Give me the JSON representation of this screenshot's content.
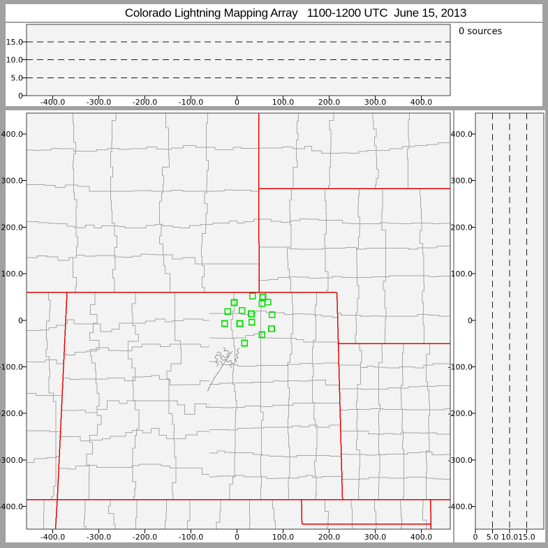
{
  "title": "Colorado Lightning Mapping Array   1100-1200 UTC  June 15, 2013",
  "sources_panel": {
    "label": "0 sources"
  },
  "colors": {
    "frame_bg": "#a1a1a1",
    "panel_bg": "#ffffff",
    "plot_bg": "#f3f3f3",
    "plot_border": "#3c3c3c",
    "axis": "#000000",
    "dashed_grid": "#1a1a1a",
    "county_line": "#a6a6a6",
    "urban_line": "#909090",
    "state_line": "#e80000",
    "station": "#00e100",
    "text": "#000000"
  },
  "chart_data": [
    {
      "id": "altitude-vs-eastwest",
      "type": "scatter",
      "title": "",
      "xlabel": "",
      "ylabel": "",
      "xlim": [
        -457,
        463
      ],
      "ylim": [
        0,
        20
      ],
      "x_ticks": [
        -400,
        -300,
        -200,
        -100,
        0,
        100,
        200,
        300,
        400
      ],
      "x_tick_labels": [
        "-400.0",
        "-300.0",
        "-200.0",
        "-100.0",
        "0",
        "100.0",
        "200.0",
        "300.0",
        "400.0"
      ],
      "y_ticks": [
        0,
        5,
        10,
        15
      ],
      "y_tick_labels": [
        "0",
        "5.0",
        "10.0",
        "15.0"
      ],
      "dashed_gridlines_y": [
        5,
        10,
        15
      ],
      "points": []
    },
    {
      "id": "map-plan-view",
      "type": "scatter",
      "title": "",
      "xlabel": "",
      "ylabel": "",
      "xlim": [
        -457,
        463
      ],
      "ylim": [
        -449,
        445
      ],
      "x_ticks": [
        -400,
        -300,
        -200,
        -100,
        0,
        100,
        200,
        300,
        400
      ],
      "x_tick_labels": [
        "-400.0",
        "-300.0",
        "-200.0",
        "-100.0",
        "0",
        "100.0",
        "200.0",
        "300.0",
        "400.0"
      ],
      "y_ticks": [
        -400,
        -300,
        -200,
        -100,
        0,
        100,
        200,
        300,
        400
      ],
      "y_tick_labels": [
        "-400.0",
        "-300.0",
        "-200.0",
        "-100.0",
        "0",
        "100.0",
        "200.0",
        "300.0",
        "400.0"
      ],
      "stations_km": [
        [
          34,
          52
        ],
        [
          56,
          50
        ],
        [
          67,
          39
        ],
        [
          54,
          36
        ],
        [
          -6,
          38
        ],
        [
          -20,
          19
        ],
        [
          11,
          21
        ],
        [
          31,
          14
        ],
        [
          76,
          12
        ],
        [
          -27,
          -7
        ],
        [
          6,
          -7
        ],
        [
          32,
          -4
        ],
        [
          75,
          -18
        ],
        [
          54,
          -31
        ],
        [
          16,
          -49
        ]
      ],
      "state_borders_km": [
        [
          [
            -457,
            60
          ],
          [
            217,
            60
          ]
        ],
        [
          [
            217,
            60
          ],
          [
            229,
            -385
          ]
        ],
        [
          [
            -369,
            60
          ],
          [
            -390,
            -385
          ]
        ],
        [
          [
            47,
            445
          ],
          [
            48,
            60
          ]
        ],
        [
          [
            48,
            283
          ],
          [
            463,
            283
          ]
        ],
        [
          [
            218,
            -50
          ],
          [
            463,
            -50
          ]
        ],
        [
          [
            -457,
            -385
          ],
          [
            463,
            -385
          ]
        ],
        [
          [
            -390,
            -385
          ],
          [
            -394,
            -449
          ]
        ],
        [
          [
            140,
            -385
          ],
          [
            141,
            -438
          ]
        ],
        [
          [
            141,
            -438
          ],
          [
            420,
            -438
          ]
        ],
        [
          [
            420,
            -385
          ],
          [
            421,
            -449
          ]
        ]
      ],
      "points": []
    },
    {
      "id": "altitude-vs-northsouth",
      "type": "scatter",
      "title": "",
      "xlabel": "",
      "ylabel": "",
      "xlim": [
        0,
        20
      ],
      "ylim": [
        -449,
        445
      ],
      "x_ticks": [
        0,
        5,
        10,
        15
      ],
      "x_tick_labels": [
        "0",
        "5.0",
        "10.0",
        "15.0"
      ],
      "y_ticks": [
        -400,
        -300,
        -200,
        -100,
        0,
        100,
        200,
        300,
        400
      ],
      "y_tick_labels": [
        "-400.0",
        "-300.0",
        "-200.0",
        "-100.0",
        "0",
        "100.0",
        "200.0",
        "300.0",
        "400.0"
      ],
      "dashed_gridlines_x": [
        5,
        10,
        15
      ],
      "points": []
    }
  ],
  "map_counties_gen": {
    "regions": [
      {
        "name": "wyoming",
        "poly": [
          [
            -457,
            445
          ],
          [
            47,
            445
          ],
          [
            48,
            60
          ],
          [
            -457,
            60
          ]
        ],
        "cell": [
          95,
          80
        ],
        "jitter": 6,
        "seed": 11
      },
      {
        "name": "south-dakota",
        "poly": [
          [
            48,
            445
          ],
          [
            463,
            445
          ],
          [
            463,
            283
          ],
          [
            48,
            283
          ]
        ],
        "cell": [
          80,
          70
        ],
        "jitter": 5,
        "seed": 22
      },
      {
        "name": "nebraska",
        "poly": [
          [
            48,
            283
          ],
          [
            463,
            283
          ],
          [
            463,
            -50
          ],
          [
            218,
            -50
          ],
          [
            217,
            60
          ],
          [
            48,
            60
          ]
        ],
        "cell": [
          75,
          62
        ],
        "jitter": 4,
        "seed": 33
      },
      {
        "name": "utah",
        "poly": [
          [
            -457,
            60
          ],
          [
            -369,
            60
          ],
          [
            -390,
            -385
          ],
          [
            -457,
            -385
          ]
        ],
        "cell": [
          45,
          75
        ],
        "jitter": 7,
        "seed": 44
      },
      {
        "name": "colorado-west",
        "poly": [
          [
            -369,
            60
          ],
          [
            -60,
            60
          ],
          [
            -60,
            -385
          ],
          [
            -390,
            -385
          ]
        ],
        "cell": [
          78,
          68
        ],
        "jitter": 9,
        "seed": 55
      },
      {
        "name": "colorado-east",
        "poly": [
          [
            -60,
            60
          ],
          [
            217,
            60
          ],
          [
            229,
            -385
          ],
          [
            -60,
            -385
          ]
        ],
        "cell": [
          55,
          50
        ],
        "jitter": 4,
        "seed": 66
      },
      {
        "name": "kansas",
        "poly": [
          [
            218,
            -50
          ],
          [
            463,
            -50
          ],
          [
            463,
            -385
          ],
          [
            229,
            -385
          ]
        ],
        "cell": [
          50,
          48
        ],
        "jitter": 3,
        "seed": 77
      },
      {
        "name": "new-mexico",
        "poly": [
          [
            -390,
            -385
          ],
          [
            140,
            -385
          ],
          [
            141,
            -449
          ],
          [
            -394,
            -449
          ]
        ],
        "cell": [
          62,
          55
        ],
        "jitter": 5,
        "seed": 88
      },
      {
        "name": "oklahoma-texas",
        "poly": [
          [
            140,
            -385
          ],
          [
            463,
            -385
          ],
          [
            463,
            -449
          ],
          [
            141,
            -449
          ]
        ],
        "cell": [
          52,
          46
        ],
        "jitter": 4,
        "seed": 99
      },
      {
        "name": "arizona",
        "poly": [
          [
            -457,
            -385
          ],
          [
            -390,
            -385
          ],
          [
            -394,
            -449
          ],
          [
            -457,
            -449
          ]
        ],
        "cell": [
          35,
          55
        ],
        "jitter": 5,
        "seed": 111
      }
    ],
    "urban_boundary_squiggles_km": [
      [
        [
          -30,
          -58
        ],
        [
          -25,
          -62
        ],
        [
          -28,
          -66
        ],
        [
          -20,
          -65
        ],
        [
          -16,
          -70
        ],
        [
          -22,
          -74
        ],
        [
          -18,
          -78
        ],
        [
          -26,
          -80
        ],
        [
          -32,
          -76
        ],
        [
          -36,
          -80
        ],
        [
          -30,
          -86
        ],
        [
          -24,
          -84
        ],
        [
          -20,
          -90
        ],
        [
          -14,
          -86
        ],
        [
          -10,
          -92
        ],
        [
          -16,
          -96
        ],
        [
          -12,
          -102
        ]
      ],
      [
        [
          -44,
          -70
        ],
        [
          -38,
          -68
        ],
        [
          -34,
          -72
        ],
        [
          -38,
          -76
        ],
        [
          -44,
          -74
        ],
        [
          -48,
          -80
        ],
        [
          -42,
          -84
        ],
        [
          -46,
          -90
        ],
        [
          -40,
          -94
        ],
        [
          -44,
          -100
        ]
      ],
      [
        [
          5,
          -60
        ],
        [
          0,
          -64
        ],
        [
          4,
          -70
        ],
        [
          -2,
          -74
        ],
        [
          2,
          -80
        ],
        [
          -4,
          -84
        ],
        [
          0,
          -90
        ]
      ],
      [
        [
          -10,
          -66
        ],
        [
          -20,
          -80
        ],
        [
          -30,
          -95
        ],
        [
          -38,
          -108
        ],
        [
          -50,
          -125
        ],
        [
          -58,
          -140
        ],
        [
          -64,
          -152
        ]
      ]
    ]
  }
}
